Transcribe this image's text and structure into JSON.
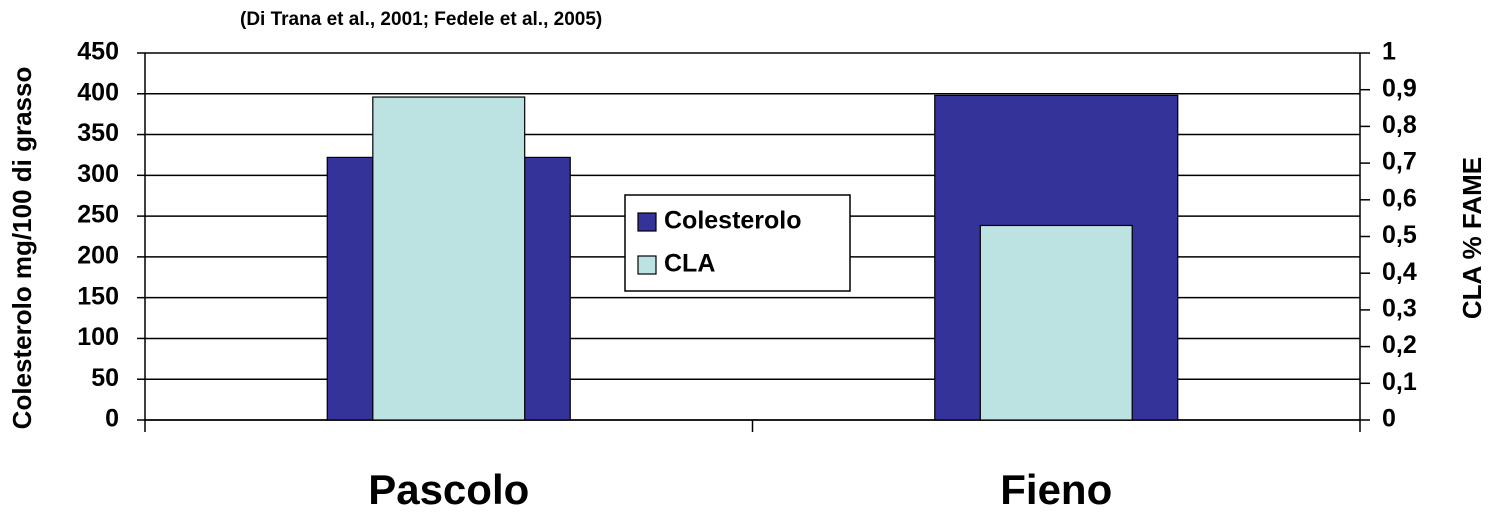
{
  "chart_data": {
    "type": "bar",
    "title": "(Di Trana et al., 2001; Fedele et al., 2005)",
    "y_label": "Colesterolo mg/100 di grasso",
    "y2_label": "CLA % FAME",
    "categories": [
      "Pascolo",
      "Fieno"
    ],
    "series": [
      {
        "name": "Colesterolo",
        "color": "#333399",
        "values": [
          322,
          398
        ]
      },
      {
        "name": "CLA",
        "color": "#bce2e2",
        "values": [
          0.88,
          0.53
        ],
        "axis": "y2"
      }
    ],
    "ylim": [
      0,
      450
    ],
    "yticks": [
      0,
      50,
      100,
      150,
      200,
      250,
      300,
      350,
      400,
      450
    ],
    "y2lim": [
      0,
      1
    ],
    "y2ticks": [
      0,
      {
        "value": 0.1,
        "label": "0,1"
      },
      {
        "value": 0.2,
        "label": "0,2"
      },
      {
        "value": 0.3,
        "label": "0,3"
      },
      {
        "value": 0.4,
        "label": "0,4"
      },
      {
        "value": 0.5,
        "label": "0,5"
      },
      {
        "value": 0.6,
        "label": "0,6"
      },
      {
        "value": 0.7,
        "label": "0,7"
      },
      {
        "value": 0.8,
        "label": "0,8"
      },
      {
        "value": 0.9,
        "label": "0,9"
      },
      1
    ],
    "grid": true
  }
}
